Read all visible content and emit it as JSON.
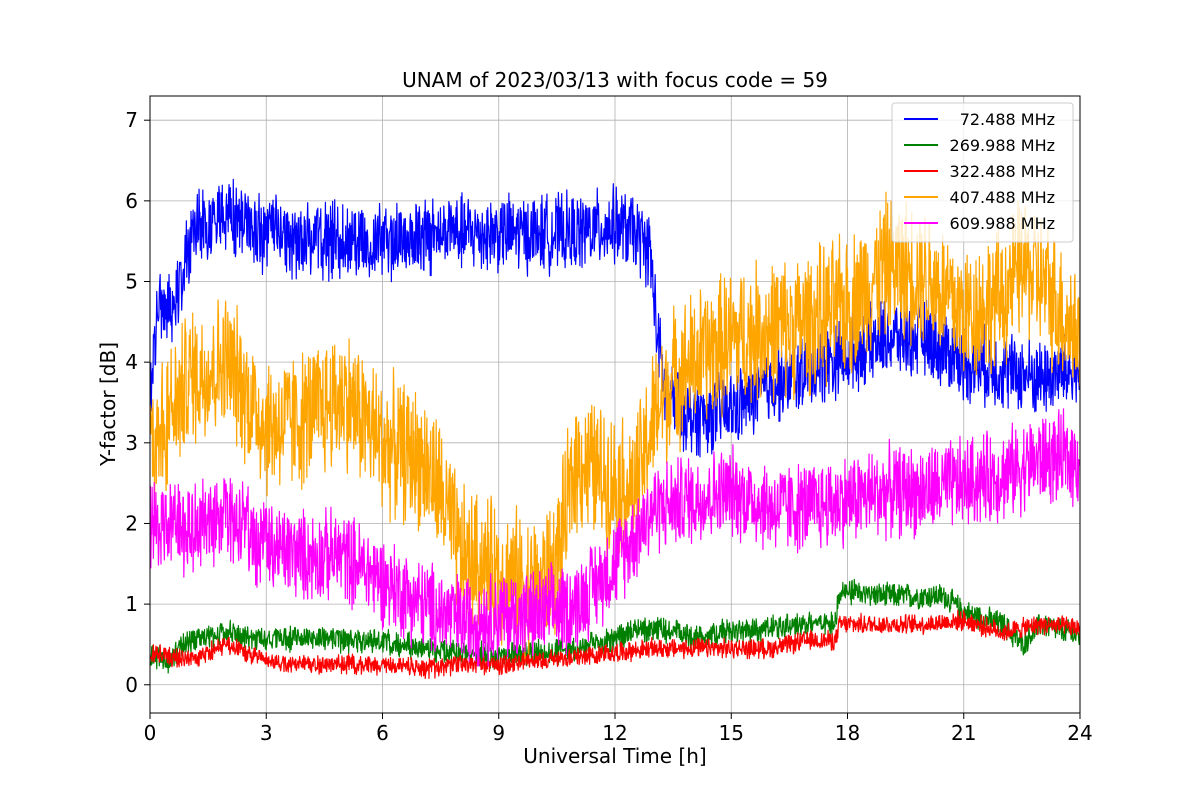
{
  "chart_data": {
    "type": "line",
    "title": "UNAM of 2023/03/13 with focus code = 59",
    "xlabel": "Universal Time [h]",
    "ylabel": "Y-factor [dB]",
    "xlim": [
      0,
      24
    ],
    "ylim": [
      -0.35,
      7.3
    ],
    "xticks": [
      0,
      3,
      6,
      9,
      12,
      15,
      18,
      21,
      24
    ],
    "xtick_labels": [
      "0",
      "3",
      "6",
      "9",
      "12",
      "15",
      "18",
      "21",
      "24"
    ],
    "yticks": [
      0,
      1,
      2,
      3,
      4,
      5,
      6,
      7
    ],
    "ytick_labels": [
      "0",
      "1",
      "2",
      "3",
      "4",
      "5",
      "6",
      "7"
    ],
    "grid": true,
    "legend_position": "top-right",
    "series": [
      {
        "name": "72.488 MHz",
        "color": "#0000ff",
        "x": [
          0,
          0.25,
          0.5,
          0.75,
          1,
          1.5,
          2,
          3,
          4,
          5,
          6,
          7,
          8,
          9,
          10,
          11,
          12,
          12.5,
          12.9,
          13.1,
          13.3,
          14,
          15,
          16,
          17,
          18,
          19,
          20,
          21,
          22,
          23,
          24
        ],
        "values": [
          3.6,
          4.8,
          4.6,
          5.0,
          5.5,
          5.7,
          5.8,
          5.6,
          5.5,
          5.5,
          5.5,
          5.55,
          5.6,
          5.6,
          5.6,
          5.6,
          5.7,
          5.6,
          5.4,
          4.3,
          3.6,
          3.3,
          3.4,
          3.7,
          3.9,
          4.1,
          4.3,
          4.3,
          4.0,
          3.9,
          3.8,
          3.9
        ],
        "noise": 0.55
      },
      {
        "name": "269.988 MHz",
        "color": "#008000",
        "x": [
          0,
          0.5,
          1,
          2,
          3,
          4,
          5,
          6,
          7,
          8,
          9,
          10,
          11,
          12,
          12.5,
          13,
          14,
          15,
          16,
          17,
          17.7,
          17.8,
          18,
          19,
          20,
          20.5,
          21,
          22,
          22.5,
          23,
          24
        ],
        "values": [
          0.35,
          0.3,
          0.55,
          0.65,
          0.55,
          0.6,
          0.55,
          0.55,
          0.45,
          0.4,
          0.35,
          0.4,
          0.45,
          0.55,
          0.7,
          0.7,
          0.6,
          0.65,
          0.7,
          0.75,
          0.8,
          1.15,
          1.15,
          1.1,
          1.1,
          1.1,
          0.9,
          0.75,
          0.5,
          0.75,
          0.6
        ],
        "noise": 0.18
      },
      {
        "name": "322.488 MHz",
        "color": "#ff0000",
        "x": [
          0,
          1,
          2,
          3,
          4,
          5,
          6,
          7,
          8,
          9,
          10,
          11,
          12,
          13,
          14,
          15,
          16,
          17,
          17.7,
          17.8,
          19,
          20,
          21,
          22,
          23,
          24
        ],
        "values": [
          0.4,
          0.3,
          0.5,
          0.3,
          0.25,
          0.25,
          0.25,
          0.2,
          0.25,
          0.25,
          0.3,
          0.35,
          0.4,
          0.45,
          0.45,
          0.45,
          0.45,
          0.55,
          0.55,
          0.75,
          0.75,
          0.75,
          0.8,
          0.65,
          0.75,
          0.7
        ],
        "noise": 0.14
      },
      {
        "name": "407.488 MHz",
        "color": "#ffa500",
        "x": [
          0,
          0.5,
          1,
          2,
          3,
          4,
          5,
          6,
          7,
          7.5,
          8,
          9,
          10,
          10.5,
          11,
          12,
          12.5,
          13,
          13.5,
          14,
          15,
          16,
          17,
          18,
          19,
          20,
          21,
          22,
          22.5,
          23,
          24
        ],
        "values": [
          3.0,
          3.3,
          3.8,
          4.0,
          3.2,
          3.3,
          3.6,
          3.0,
          2.8,
          2.4,
          1.6,
          1.4,
          1.2,
          1.5,
          2.8,
          2.5,
          2.4,
          3.3,
          3.8,
          4.0,
          4.3,
          4.4,
          4.5,
          4.7,
          5.2,
          5.1,
          4.6,
          4.8,
          5.2,
          5.0,
          4.3
        ],
        "noise": 1.0
      },
      {
        "name": "609.988 MHz",
        "color": "#ff00ff",
        "x": [
          0,
          1,
          2,
          3,
          4,
          5,
          6,
          7,
          8,
          9,
          10,
          11,
          12,
          13,
          14,
          15,
          16,
          17,
          18,
          19,
          20,
          21,
          22,
          23,
          24
        ],
        "values": [
          2.0,
          1.9,
          2.1,
          1.7,
          1.6,
          1.6,
          1.3,
          1.0,
          0.8,
          0.85,
          0.85,
          1.0,
          1.5,
          2.2,
          2.3,
          2.4,
          2.2,
          2.2,
          2.3,
          2.4,
          2.4,
          2.5,
          2.6,
          2.8,
          2.8
        ],
        "noise": 0.65
      }
    ]
  }
}
